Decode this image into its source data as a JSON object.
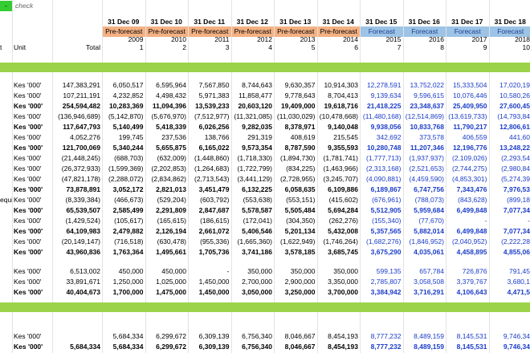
{
  "header": {
    "check_mark": "-",
    "check": "check",
    "dates": [
      "31 Dec 09",
      "31 Dec 10",
      "31 Dec 11",
      "31 Dec 12",
      "31 Dec 13",
      "31 Dec 14",
      "31 Dec 15",
      "31 Dec 16",
      "31 Dec 17",
      "31 Dec 18"
    ],
    "phases": [
      "Pre-forecast",
      "Pre-forecast",
      "Pre-forecast",
      "Pre-forecast",
      "Pre-forecast",
      "Pre-forecast",
      "Forecast",
      "Forecast",
      "Forecast",
      "Forecast"
    ],
    "years": [
      "2009",
      "2010",
      "2011",
      "2012",
      "2013",
      "2014",
      "2015",
      "2016",
      "2017",
      "2018"
    ],
    "index": [
      "1",
      "2",
      "3",
      "4",
      "5",
      "6",
      "7",
      "8",
      "9",
      "10"
    ],
    "row_label": "t",
    "unit": "Unit",
    "total": "Total"
  },
  "sections": [
    {
      "rows": [
        {
          "unit": "Kes '000'",
          "total": "147,383,291",
          "values": [
            "6,050,517",
            "6,595,964",
            "7,567,850",
            "8,744,643",
            "9,630,357",
            "10,914,303",
            "12,278,591",
            "13,752,022",
            "15,333,504",
            "17,020,19"
          ]
        },
        {
          "unit": "Kes '000'",
          "total": "107,211,191",
          "values": [
            "4,232,852",
            "4,498,432",
            "5,971,383",
            "11,858,477",
            "9,778,643",
            "8,704,413",
            "9,139,634",
            "9,596,615",
            "10,076,446",
            "10,580,26"
          ]
        },
        {
          "unit": "Kes '000'",
          "total": "254,594,482",
          "bold": true,
          "values": [
            "10,283,369",
            "11,094,396",
            "13,539,233",
            "20,603,120",
            "19,409,000",
            "19,618,716",
            "21,418,225",
            "23,348,637",
            "25,409,950",
            "27,600,45"
          ]
        },
        {
          "unit": "Kes '000'",
          "total": "(136,946,689)",
          "values": [
            "(5,142,870)",
            "(5,676,970)",
            "(7,512,977)",
            "(11,321,085)",
            "(11,030,029)",
            "(10,478,668)",
            "(11,480,168)",
            "(12,514,869)",
            "(13,619,733)",
            "(14,793,84"
          ]
        },
        {
          "unit": "Kes '000'",
          "total": "117,647,793",
          "bold": true,
          "values": [
            "5,140,499",
            "5,418,339",
            "6,026,256",
            "9,282,035",
            "8,378,971",
            "9,140,048",
            "9,938,056",
            "10,833,768",
            "11,790,217",
            "12,806,61"
          ]
        },
        {
          "unit": "Kes '000'",
          "total": "4,052,276",
          "values": [
            "199,745",
            "237,536",
            "138,766",
            "291,319",
            "408,619",
            "215,545",
            "342,692",
            "373,578",
            "406,559",
            "441,60"
          ]
        },
        {
          "unit": "Kes '000'",
          "total": "121,700,069",
          "bold": true,
          "values": [
            "5,340,244",
            "5,655,875",
            "6,165,022",
            "9,573,354",
            "8,787,590",
            "9,355,593",
            "10,280,748",
            "11,207,346",
            "12,196,776",
            "13,248,22"
          ]
        },
        {
          "unit": "Kes '000'",
          "total": "(21,448,245)",
          "values": [
            "(688,703)",
            "(632,009)",
            "(1,448,860)",
            "(1,718,330)",
            "(1,894,730)",
            "(1,781,741)",
            "(1,777,713)",
            "(1,937,937)",
            "(2,109,026)",
            "(2,293,54"
          ]
        },
        {
          "unit": "Kes '000'",
          "total": "(26,372,933)",
          "values": [
            "(1,599,369)",
            "(2,202,853)",
            "(1,264,683)",
            "(1,722,799)",
            "(834,225)",
            "(1,463,966)",
            "(2,313,168)",
            "(2,521,653)",
            "(2,744,275)",
            "(2,980,84"
          ]
        },
        {
          "unit": "Kes '000'",
          "total": "(47,821,178)",
          "values": [
            "(2,288,072)",
            "(2,834,862)",
            "(2,713,543)",
            "(3,441,129)",
            "(2,728,955)",
            "(3,245,707)",
            "(4,090,881)",
            "(4,459,590)",
            "(4,853,301)",
            "(5,274,39"
          ]
        },
        {
          "unit": "Kes '000'",
          "total": "73,878,891",
          "bold": true,
          "values": [
            "3,052,172",
            "2,821,013",
            "3,451,479",
            "6,132,225",
            "6,058,635",
            "6,109,886",
            "6,189,867",
            "6,747,756",
            "7,343,476",
            "7,976,53"
          ]
        },
        {
          "label": "equi",
          "unit": "Kes '000'",
          "total": "(8,339,384)",
          "values": [
            "(466,673)",
            "(529,204)",
            "(603,792)",
            "(553,638)",
            "(553,151)",
            "(415,602)",
            "(676,961)",
            "(788,073)",
            "(843,628)",
            "(899,18"
          ]
        },
        {
          "unit": "Kes '000'",
          "total": "65,539,507",
          "bold": true,
          "values": [
            "2,585,499",
            "2,291,809",
            "2,847,687",
            "5,578,587",
            "5,505,484",
            "5,694,284",
            "5,512,905",
            "5,959,684",
            "6,499,848",
            "7,077,34"
          ]
        },
        {
          "unit": "Kes '000'",
          "total": "(1,429,524)",
          "values": [
            "(105,617)",
            "(165,615)",
            "(186,615)",
            "(172,041)",
            "(304,350)",
            "(262,276)",
            "(155,340)",
            "(77,670)",
            "-",
            "-"
          ]
        },
        {
          "unit": "Kes '000'",
          "total": "64,109,983",
          "bold": true,
          "values": [
            "2,479,882",
            "2,126,194",
            "2,661,072",
            "5,406,546",
            "5,201,134",
            "5,432,008",
            "5,357,565",
            "5,882,014",
            "6,499,848",
            "7,077,34"
          ]
        },
        {
          "unit": "Kes '000'",
          "total": "(20,149,147)",
          "values": [
            "(716,518)",
            "(630,478)",
            "(955,336)",
            "(1,665,360)",
            "(1,622,949)",
            "(1,746,264)",
            "(1,682,276)",
            "(1,846,952)",
            "(2,040,952)",
            "(2,222,28"
          ]
        },
        {
          "unit": "Kes '000'",
          "total": "43,960,836",
          "bold": true,
          "values": [
            "1,763,364",
            "1,495,661",
            "1,705,736",
            "3,741,186",
            "3,578,185",
            "3,685,745",
            "3,675,290",
            "4,035,061",
            "4,458,895",
            "4,855,06"
          ]
        }
      ]
    },
    {
      "rows": [
        {
          "unit": "Kes '000'",
          "total": "6,513,002",
          "values": [
            "450,000",
            "450,000",
            "-",
            "350,000",
            "350,000",
            "350,000",
            "599,135",
            "657,784",
            "726,876",
            "791,45"
          ]
        },
        {
          "unit": "Kes '000'",
          "total": "33,891,671",
          "values": [
            "1,250,000",
            "1,025,000",
            "1,450,000",
            "2,700,000",
            "2,900,000",
            "3,350,000",
            "2,785,807",
            "3,058,508",
            "3,379,767",
            "3,680,1"
          ]
        },
        {
          "unit": "Kes '000'",
          "total": "40,404,673",
          "bold": true,
          "values": [
            "1,700,000",
            "1,475,000",
            "1,450,000",
            "3,050,000",
            "3,250,000",
            "3,700,000",
            "3,384,942",
            "3,716,291",
            "4,106,643",
            "4,471,5"
          ]
        }
      ]
    },
    {
      "rows": [
        {
          "unit": "Kes '000'",
          "values": [
            "5,684,334",
            "6,299,672",
            "6,309,139",
            "6,756,340",
            "8,046,667",
            "8,454,193",
            "8,777,232",
            "8,489,159",
            "8,145,531",
            "9,746,34"
          ]
        },
        {
          "unit": "Kes '000'",
          "total": "5,684,334",
          "bold": true,
          "values": [
            "5,684,334",
            "6,299,672",
            "6,309,139",
            "6,756,340",
            "8,046,667",
            "8,454,193",
            "8,777,232",
            "8,489,159",
            "8,145,531",
            "9,746,34"
          ]
        }
      ]
    }
  ]
}
